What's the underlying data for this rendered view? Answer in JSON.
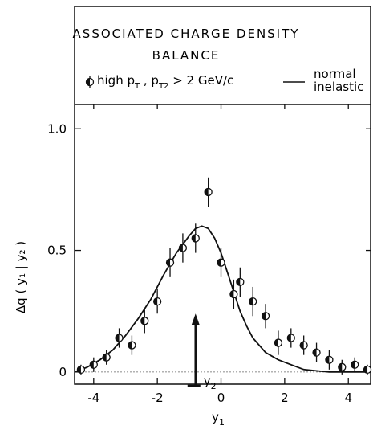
{
  "chart_data": {
    "type": "scatter",
    "title_line1": "ASSOCIATED CHARGE DENSITY",
    "title_line2": "BALANCE",
    "xlabel": {
      "main": "y",
      "sub": "1"
    },
    "ylabel": "Δq ( y₁ | y₂ )",
    "xlim": [
      -4.6,
      4.7
    ],
    "ylim": [
      -0.05,
      1.1
    ],
    "x_ticks": [
      -4,
      -2,
      0,
      2,
      4
    ],
    "x_tick_labels": [
      "-4",
      "-2",
      "0",
      "2",
      "4"
    ],
    "y_ticks": [
      0,
      0.5,
      1.0
    ],
    "y_tick_labels": [
      "0",
      "0.5",
      "1.0"
    ],
    "legend": {
      "points": {
        "label": "high p",
        "sub1": "T",
        "mid": " , p",
        "sub2": "T2",
        "tail": " > 2 GeV/c"
      },
      "line_line1": "normal",
      "line_line2": "inelastic"
    },
    "annotation": {
      "label": "y",
      "sub": "2",
      "x": -0.8,
      "y_from": 0.0,
      "y_to": 0.24
    },
    "series": [
      {
        "kind": "points",
        "x": [
          -4.4,
          -4.0,
          -3.6,
          -3.2,
          -2.8,
          -2.4,
          -2.0,
          -1.6,
          -1.2,
          -0.8,
          -0.4,
          0.0,
          0.4,
          0.6,
          1.0,
          1.4,
          1.8,
          2.2,
          2.6,
          3.0,
          3.4,
          3.8,
          4.2,
          4.6
        ],
        "y": [
          0.01,
          0.03,
          0.06,
          0.14,
          0.11,
          0.21,
          0.29,
          0.45,
          0.51,
          0.55,
          0.74,
          0.45,
          0.32,
          0.37,
          0.29,
          0.23,
          0.12,
          0.14,
          0.11,
          0.08,
          0.05,
          0.02,
          0.03,
          0.01
        ],
        "err": [
          0.02,
          0.03,
          0.03,
          0.04,
          0.04,
          0.05,
          0.05,
          0.06,
          0.06,
          0.06,
          0.06,
          0.06,
          0.06,
          0.06,
          0.06,
          0.05,
          0.05,
          0.04,
          0.04,
          0.04,
          0.04,
          0.03,
          0.03,
          0.02
        ]
      },
      {
        "kind": "curve",
        "x": [
          -4.6,
          -4.2,
          -3.8,
          -3.4,
          -3.0,
          -2.6,
          -2.2,
          -1.8,
          -1.4,
          -1.0,
          -0.8,
          -0.6,
          -0.4,
          -0.2,
          0.0,
          0.2,
          0.4,
          0.6,
          0.8,
          1.0,
          1.4,
          1.8,
          2.2,
          2.6,
          3.0,
          3.4,
          3.8,
          4.2,
          4.6
        ],
        "y": [
          0.0,
          0.02,
          0.05,
          0.09,
          0.15,
          0.22,
          0.3,
          0.4,
          0.49,
          0.56,
          0.59,
          0.6,
          0.59,
          0.55,
          0.49,
          0.41,
          0.33,
          0.25,
          0.19,
          0.14,
          0.08,
          0.05,
          0.03,
          0.01,
          0.005,
          0.0,
          0.0,
          0.0,
          0.0
        ]
      }
    ]
  }
}
